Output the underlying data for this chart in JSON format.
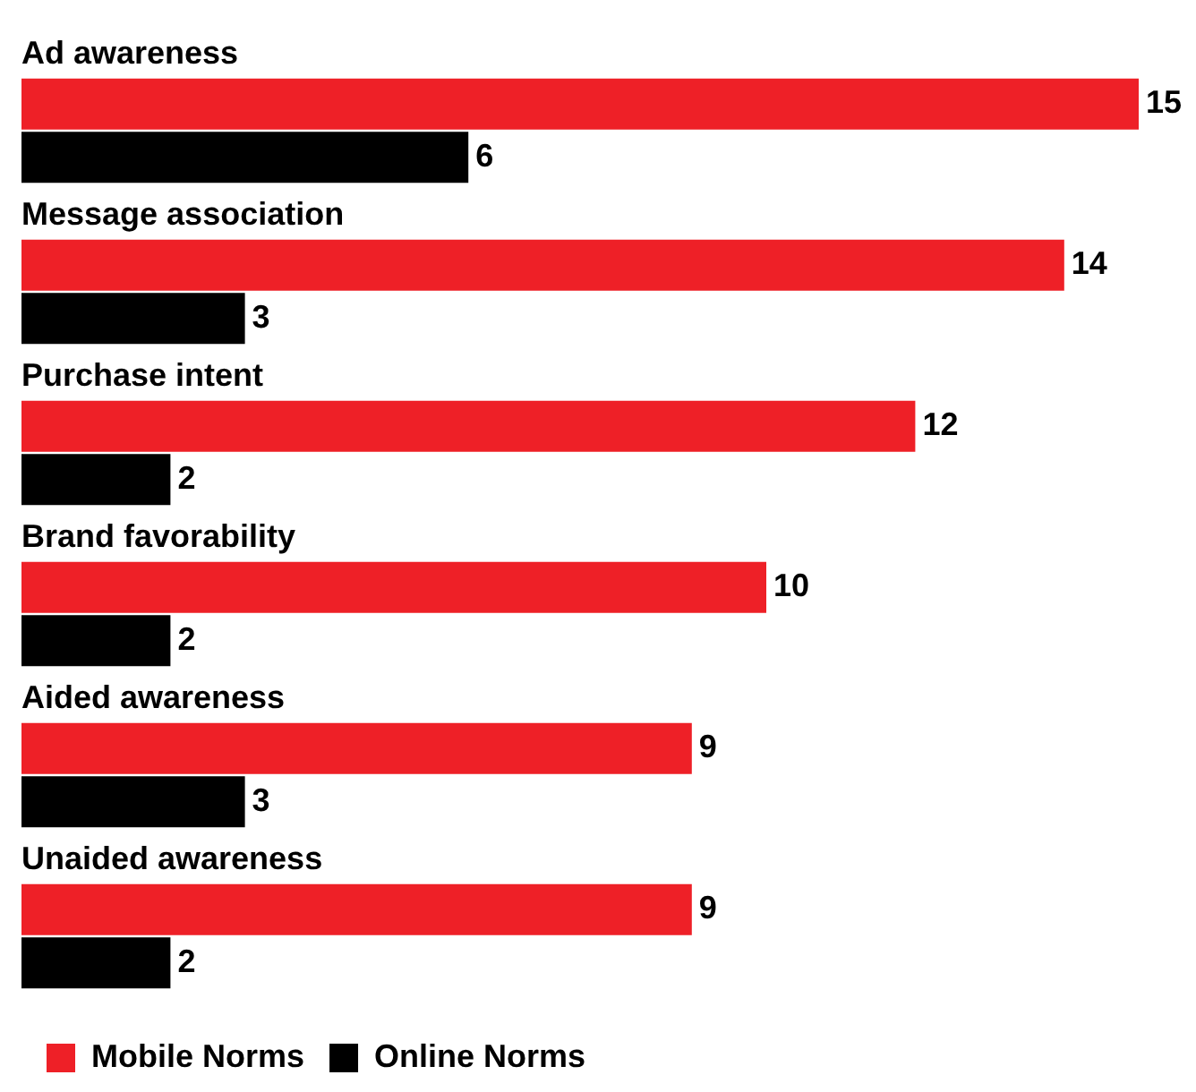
{
  "chart_data": {
    "type": "bar",
    "orientation": "horizontal",
    "categories": [
      "Ad awareness",
      "Message association",
      "Purchase intent",
      "Brand favorability",
      "Aided awareness",
      "Unaided awareness"
    ],
    "series": [
      {
        "name": "Mobile Norms",
        "color": "#ee2027",
        "values": [
          15,
          14,
          12,
          10,
          9,
          9
        ]
      },
      {
        "name": "Online Norms",
        "color": "#000000",
        "values": [
          6,
          3,
          2,
          2,
          3,
          2
        ]
      }
    ],
    "data_labels": true,
    "legend": "bottom left"
  }
}
